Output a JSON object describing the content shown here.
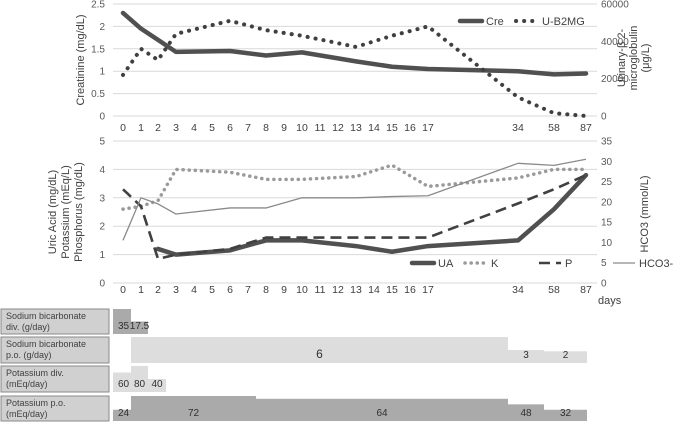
{
  "x_categories": [
    "0",
    "1",
    "2",
    "3",
    "4",
    "5",
    "6",
    "7",
    "8",
    "9",
    "10",
    "11",
    "12",
    "13",
    "14",
    "15",
    "16",
    "17",
    "34",
    "58",
    "87"
  ],
  "x_unit_label": "days",
  "chart_data": [
    {
      "type": "line",
      "ylabel": "Creatinine (mg/dL)",
      "y2label": "Urinary-β 2-microglobulin (μg/L)",
      "ylim": [
        0,
        2.5
      ],
      "y2lim": [
        0,
        60000
      ],
      "yticks": [
        "0",
        "0.5",
        "1",
        "1.5",
        "2",
        "2.5"
      ],
      "y2ticks": [
        "0",
        "20000",
        "40000",
        "60000"
      ],
      "legend": "top-right",
      "grid": true,
      "series": [
        {
          "name": "Cre",
          "axis": "left",
          "style": "solid-thick",
          "color": "#505050",
          "points": [
            [
              "0",
              2.3
            ],
            [
              "1",
              1.95
            ],
            [
              "2",
              1.7
            ],
            [
              "3",
              1.43
            ],
            [
              "6",
              1.45
            ],
            [
              "8",
              1.35
            ],
            [
              "10",
              1.42
            ],
            [
              "13",
              1.22
            ],
            [
              "15",
              1.1
            ],
            [
              "17",
              1.05
            ],
            [
              "34",
              1.0
            ],
            [
              "58",
              0.93
            ],
            [
              "87",
              0.95
            ]
          ]
        },
        {
          "name": "U-B2MG",
          "axis": "right",
          "style": "dotted-thick",
          "color": "#404040",
          "points": [
            [
              "0",
              22000
            ],
            [
              "1",
              36000
            ],
            [
              "2",
              30000
            ],
            [
              "3",
              44000
            ],
            [
              "6",
              51000
            ],
            [
              "8",
              46000
            ],
            [
              "10",
              43000
            ],
            [
              "13",
              37000
            ],
            [
              "15",
              43000
            ],
            [
              "17",
              48000
            ],
            [
              "34",
              10000
            ],
            [
              "58",
              1500
            ],
            [
              "87",
              0
            ]
          ]
        }
      ]
    },
    {
      "type": "line",
      "ylabel": "Uric Acid (mg/dL) Potassium (mEq/L) Phosphorus (mg/dL)",
      "ylabel_lines": [
        "Uric Acid (mg/dL)",
        "Potassium (mEq/L)",
        "Phosphorus (mg/dL)"
      ],
      "y2label": "HCO3 (mmol/L)",
      "ylim": [
        0,
        5
      ],
      "y2lim": [
        0,
        35
      ],
      "yticks": [
        "0",
        "1",
        "2",
        "3",
        "4",
        "5"
      ],
      "y2ticks": [
        "0",
        "5",
        "10",
        "15",
        "20",
        "25",
        "30",
        "35"
      ],
      "legend": "bottom-right",
      "grid": true,
      "series": [
        {
          "name": "UA",
          "axis": "left",
          "style": "solid-thick",
          "color": "#505050",
          "points": [
            [
              "2",
              1.2
            ],
            [
              "3",
              1.0
            ],
            [
              "6",
              1.15
            ],
            [
              "8",
              1.5
            ],
            [
              "10",
              1.5
            ],
            [
              "13",
              1.3
            ],
            [
              "15",
              1.1
            ],
            [
              "17",
              1.3
            ],
            [
              "34",
              1.5
            ],
            [
              "58",
              2.6
            ],
            [
              "87",
              3.8
            ]
          ]
        },
        {
          "name": "K",
          "axis": "left",
          "style": "dotted",
          "color": "#9a9a9a",
          "points": [
            [
              "0",
              2.6
            ],
            [
              "1",
              2.7
            ],
            [
              "2",
              2.9
            ],
            [
              "3",
              4.0
            ],
            [
              "6",
              3.9
            ],
            [
              "8",
              3.65
            ],
            [
              "10",
              3.65
            ],
            [
              "13",
              3.75
            ],
            [
              "15",
              4.15
            ],
            [
              "17",
              3.4
            ],
            [
              "34",
              3.7
            ],
            [
              "58",
              4.0
            ],
            [
              "87",
              4.0
            ]
          ]
        },
        {
          "name": "P",
          "axis": "left",
          "style": "dashed",
          "color": "#404040",
          "points": [
            [
              "0",
              3.3
            ],
            [
              "1",
              2.7
            ],
            [
              "2",
              0.85
            ],
            [
              "3",
              1.0
            ],
            [
              "6",
              1.2
            ],
            [
              "8",
              1.6
            ],
            [
              "10",
              1.6
            ],
            [
              "13",
              1.6
            ],
            [
              "15",
              1.6
            ],
            [
              "17",
              1.6
            ],
            [
              "34",
              2.8
            ],
            [
              "58",
              3.3
            ],
            [
              "87",
              3.8
            ]
          ]
        },
        {
          "name": "HCO3-",
          "axis": "right",
          "style": "solid-thin",
          "color": "#8a8a8a",
          "points": [
            [
              "0",
              10.5
            ],
            [
              "1",
              21
            ],
            [
              "2",
              19.5
            ],
            [
              "3",
              17
            ],
            [
              "6",
              18.5
            ],
            [
              "8",
              18.5
            ],
            [
              "10",
              21
            ],
            [
              "13",
              21
            ],
            [
              "15",
              21.3
            ],
            [
              "17",
              21.5
            ],
            [
              "34",
              29.5
            ],
            [
              "58",
              29
            ],
            [
              "87",
              30.5
            ]
          ]
        }
      ]
    }
  ],
  "doses": [
    {
      "label": "Sodium bicarbonate div. (g/day)",
      "label_lines": [
        "Sodium bicarbonate",
        "div. (g/day)"
      ],
      "color": "#aaaaaa",
      "segments": [
        {
          "from": "0",
          "to": "1",
          "value": "35"
        },
        {
          "from": "1",
          "to": "2",
          "value": "17.5"
        }
      ]
    },
    {
      "label": "Sodium bicarbonate p.o. (g/day)",
      "label_lines": [
        "Sodium bicarbonate",
        "p.o. (g/day)"
      ],
      "color": "#dddddd",
      "segments": [
        {
          "from": "1",
          "to": "34",
          "value": "6"
        },
        {
          "from": "34",
          "to": "58",
          "value": "3"
        },
        {
          "from": "58",
          "to": "87",
          "value": "2"
        }
      ]
    },
    {
      "label": "Potassium div. (mEq/day)",
      "label_lines": [
        "Potassium div.",
        "(mEq/day)"
      ],
      "color": "#dddddd",
      "segments": [
        {
          "from": "0",
          "to": "1",
          "value": "60"
        },
        {
          "from": "1",
          "to": "2",
          "value": "80"
        },
        {
          "from": "2",
          "to": "3",
          "value": "40"
        }
      ]
    },
    {
      "label": "Potassium p.o. (mEq/day)",
      "label_lines": [
        "Potassium p.o.",
        "(mEq/day)"
      ],
      "color": "#aaaaaa",
      "segments": [
        {
          "from": "0",
          "to": "1",
          "value": "24"
        },
        {
          "from": "1",
          "to": "8",
          "value": "72"
        },
        {
          "from": "8",
          "to": "34",
          "value": "64"
        },
        {
          "from": "34",
          "to": "58",
          "value": "48"
        },
        {
          "from": "58",
          "to": "87",
          "value": "32"
        }
      ]
    }
  ]
}
